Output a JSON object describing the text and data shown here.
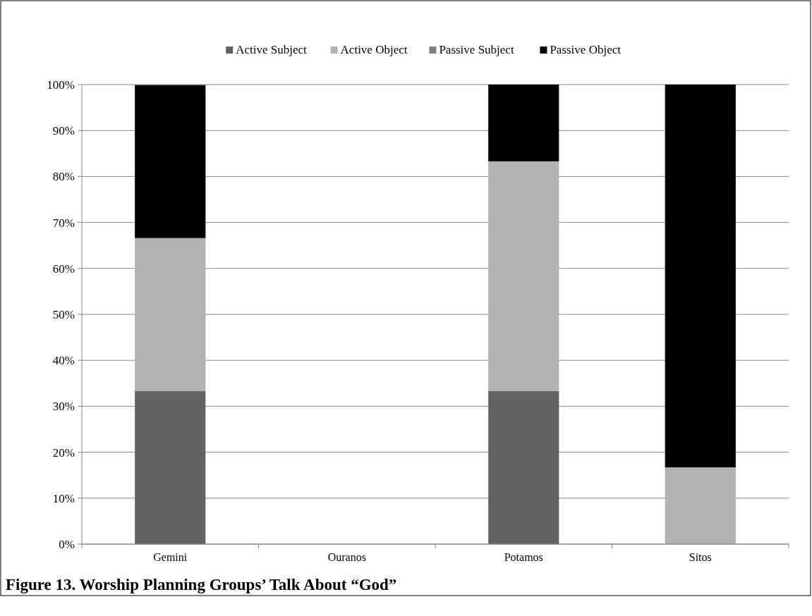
{
  "chart_data": {
    "type": "bar",
    "title": "Figure 13. Worship Planning Groups’ Talk About “God”",
    "stacked": true,
    "categories": [
      "Gemini",
      "Ouranos",
      "Potamos",
      "Sitos"
    ],
    "series": [
      {
        "name": "Active Subject",
        "color": "#636363",
        "values": [
          33.3,
          0,
          33.3,
          0
        ]
      },
      {
        "name": "Active Object",
        "color": "#b2b2b2",
        "values": [
          33.3,
          0,
          50,
          16.7
        ]
      },
      {
        "name": "Passive Subject",
        "color": "#808080",
        "values": [
          0,
          0,
          0,
          0
        ]
      },
      {
        "name": "Passive Object",
        "color": "#000000",
        "values": [
          33.3,
          0,
          16.7,
          83.3
        ]
      }
    ],
    "ylim": [
      0,
      100
    ],
    "yticks": [
      {
        "value": 0,
        "label": "0%"
      },
      {
        "value": 10,
        "label": "10%"
      },
      {
        "value": 20,
        "label": "20%"
      },
      {
        "value": 30,
        "label": "30%"
      },
      {
        "value": 40,
        "label": "40%"
      },
      {
        "value": 50,
        "label": "50%"
      },
      {
        "value": 60,
        "label": "60%"
      },
      {
        "value": 70,
        "label": "70%"
      },
      {
        "value": 80,
        "label": "80%"
      },
      {
        "value": 90,
        "label": "90%"
      },
      {
        "value": 100,
        "label": "100%"
      }
    ],
    "grid": "y",
    "legend": "top"
  }
}
